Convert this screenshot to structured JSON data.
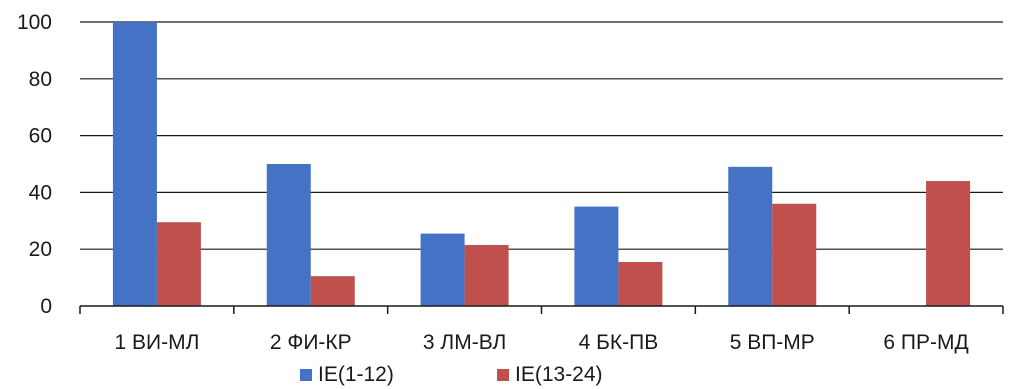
{
  "chart_data": {
    "type": "bar",
    "categories": [
      "1 ВИ-МЛ",
      "2 ФИ-КР",
      "3 ЛМ-ВЛ",
      "4 БК-ПВ",
      "5 ВП-МР",
      "6 ПР-МД"
    ],
    "series": [
      {
        "name": "IE(1-12)",
        "color": "#4472c4",
        "values": [
          100,
          50,
          25.5,
          35,
          49,
          null
        ]
      },
      {
        "name": "IE(13-24)",
        "color": "#c0504d",
        "values": [
          29.5,
          10.5,
          21.5,
          15.5,
          36,
          44
        ]
      }
    ],
    "ylim": [
      0,
      100
    ],
    "yticks": [
      0,
      20,
      40,
      60,
      80,
      100
    ],
    "grid": true,
    "legend_position": "bottom",
    "title": "",
    "xlabel": "",
    "ylabel": ""
  }
}
